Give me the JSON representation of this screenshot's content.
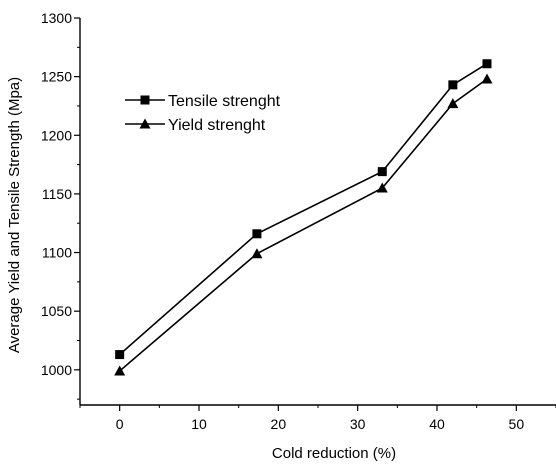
{
  "chart_data": {
    "type": "line",
    "xlabel": "Cold reduction (%)",
    "ylabel": "Average Yield and Tensile Strength (Mpa)",
    "xlim": [
      -5,
      55
    ],
    "ylim": [
      970,
      1300
    ],
    "xticks": [
      0,
      10,
      20,
      30,
      40,
      50
    ],
    "yticks": [
      1000,
      1050,
      1100,
      1150,
      1200,
      1250,
      1300
    ],
    "xtick_labels": [
      "0",
      "10",
      "20",
      "30",
      "40",
      "50"
    ],
    "ytick_labels": [
      "1000",
      "1050",
      "1100",
      "1150",
      "1200",
      "1250",
      "1300"
    ],
    "legend_position": "top-left",
    "grid": false,
    "series": [
      {
        "name": "Tensile strenght",
        "marker": "square",
        "color": "#000000",
        "x": [
          0,
          17.3,
          33.1,
          42,
          46.3
        ],
        "y": [
          1013,
          1116,
          1169,
          1243,
          1261
        ]
      },
      {
        "name": "Yield strenght",
        "marker": "triangle",
        "color": "#000000",
        "x": [
          0,
          17.3,
          33.1,
          42,
          46.3
        ],
        "y": [
          999,
          1099,
          1155,
          1227,
          1248
        ]
      }
    ]
  }
}
